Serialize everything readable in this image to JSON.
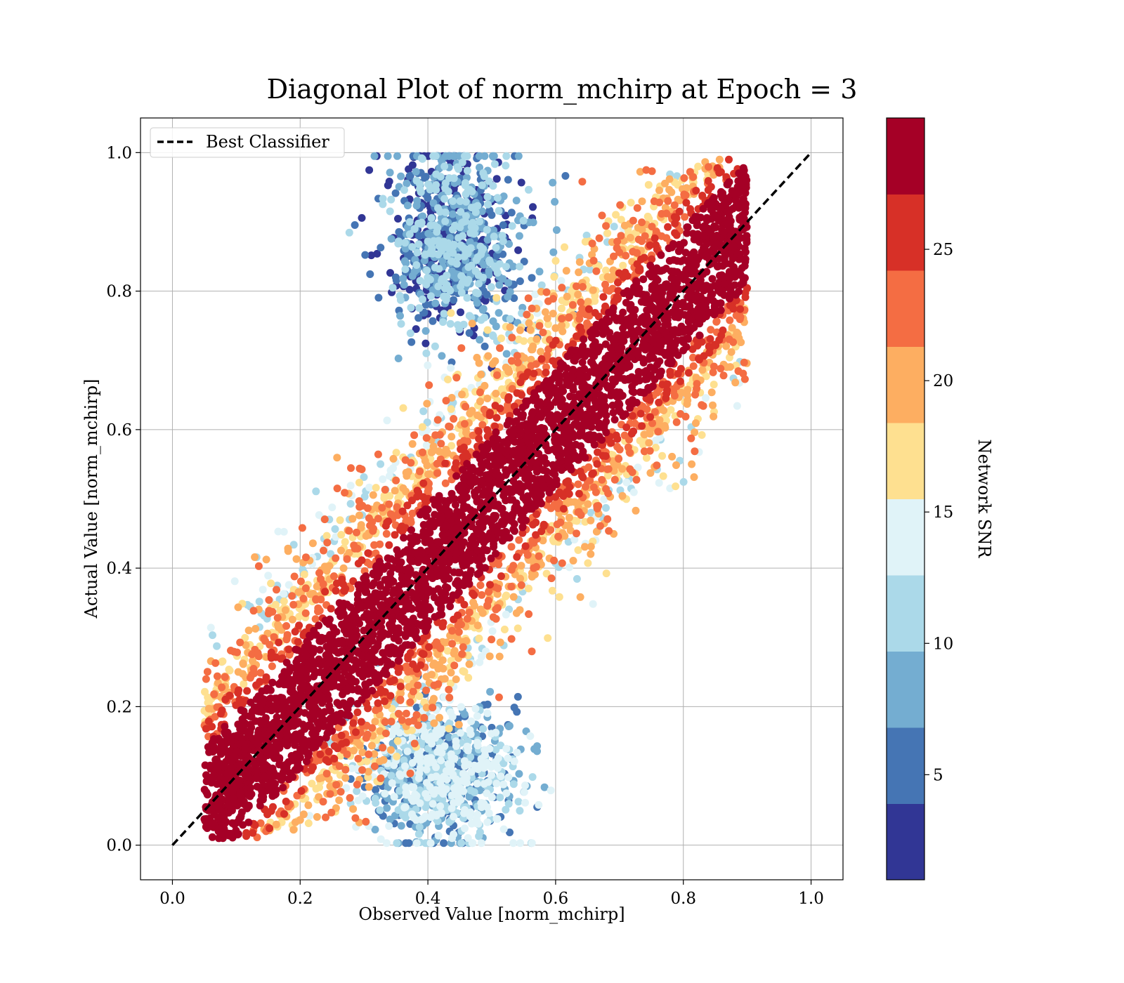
{
  "chart_data": {
    "type": "scatter",
    "title": "Diagonal Plot of norm_mchirp at Epoch = 3",
    "xlabel": "Observed Value [norm_mchirp]",
    "ylabel": "Actual Value [norm_mchirp]",
    "xlim": [
      -0.05,
      1.05
    ],
    "ylim": [
      -0.05,
      1.05
    ],
    "xticks": [
      "0.0",
      "0.2",
      "0.4",
      "0.6",
      "0.8",
      "1.0"
    ],
    "yticks": [
      "0.0",
      "0.2",
      "0.4",
      "0.6",
      "0.8",
      "1.0"
    ],
    "grid": true,
    "legend": {
      "position": "top-left",
      "entries": [
        "Best Classifier"
      ]
    },
    "reference_line": {
      "name": "Best Classifier",
      "x": [
        0.0,
        1.0
      ],
      "y": [
        0.0,
        1.0
      ],
      "style": "dashed",
      "color": "#000000"
    },
    "colorbar": {
      "label": "Network SNR",
      "range": [
        1,
        30
      ],
      "ticks": [
        "5",
        "10",
        "15",
        "20",
        "25"
      ],
      "tick_values": [
        5,
        10,
        15,
        20,
        25
      ],
      "colors": [
        "#313695",
        "#4575b4",
        "#74add1",
        "#abd9e9",
        "#e0f3f8",
        "#fee090",
        "#fdae61",
        "#f46d43",
        "#d73027",
        "#a50026"
      ]
    },
    "scatter_density_regions": [
      {
        "snr_range": "high (>25)",
        "color": "#a50026",
        "description_region": "band along diagonal y≈x, width ~0.15"
      },
      {
        "snr_range": "low (<10)",
        "color": "#4575b4",
        "description_region": "upper cluster around x≈0.4-0.5, y≈0.8-1.0 and lower cluster x≈0.35-0.5, y≈0.0-0.2"
      }
    ]
  }
}
